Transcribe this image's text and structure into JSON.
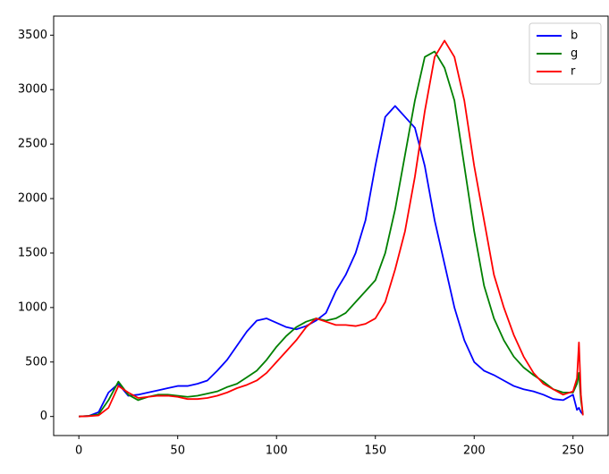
{
  "chart_data": {
    "type": "line",
    "x": [
      0,
      5,
      10,
      15,
      20,
      25,
      30,
      35,
      40,
      45,
      50,
      55,
      60,
      65,
      70,
      75,
      80,
      85,
      90,
      95,
      100,
      105,
      110,
      115,
      120,
      125,
      130,
      135,
      140,
      145,
      150,
      155,
      160,
      165,
      170,
      175,
      180,
      185,
      190,
      195,
      200,
      205,
      210,
      215,
      220,
      225,
      230,
      235,
      240,
      245,
      250,
      252,
      253,
      254,
      255
    ],
    "series": [
      {
        "name": "b",
        "color": "#0000ff",
        "values": [
          0,
          5,
          40,
          220,
          300,
          190,
          200,
          220,
          240,
          260,
          280,
          280,
          300,
          330,
          420,
          520,
          650,
          780,
          880,
          900,
          860,
          820,
          800,
          830,
          880,
          950,
          1150,
          1300,
          1500,
          1800,
          2300,
          2750,
          2850,
          2750,
          2650,
          2300,
          1800,
          1400,
          1000,
          700,
          500,
          420,
          380,
          330,
          280,
          250,
          230,
          200,
          160,
          150,
          200,
          60,
          80,
          40,
          20
        ]
      },
      {
        "name": "g",
        "color": "#008000",
        "values": [
          0,
          5,
          20,
          150,
          320,
          200,
          150,
          180,
          200,
          200,
          190,
          180,
          190,
          210,
          230,
          270,
          300,
          360,
          420,
          520,
          640,
          740,
          820,
          870,
          900,
          880,
          900,
          950,
          1050,
          1150,
          1250,
          1500,
          1900,
          2400,
          2900,
          3300,
          3350,
          3200,
          2900,
          2300,
          1700,
          1200,
          900,
          700,
          550,
          450,
          380,
          320,
          250,
          220,
          220,
          300,
          400,
          150,
          20
        ]
      },
      {
        "name": "r",
        "color": "#ff0000",
        "values": [
          0,
          3,
          10,
          80,
          280,
          220,
          170,
          180,
          190,
          190,
          180,
          160,
          160,
          170,
          190,
          220,
          260,
          290,
          330,
          400,
          500,
          600,
          700,
          820,
          900,
          870,
          840,
          840,
          830,
          850,
          900,
          1050,
          1350,
          1700,
          2200,
          2800,
          3300,
          3450,
          3300,
          2900,
          2300,
          1800,
          1300,
          1000,
          750,
          550,
          400,
          300,
          250,
          200,
          230,
          350,
          680,
          200,
          10
        ]
      }
    ],
    "xlim": [
      -12.75,
      267.75
    ],
    "ylim": [
      -175,
      3675
    ],
    "xticks": [
      0,
      50,
      100,
      150,
      200,
      250
    ],
    "yticks": [
      0,
      500,
      1000,
      1500,
      2000,
      2500,
      3000,
      3500
    ],
    "legend": "upper right"
  }
}
